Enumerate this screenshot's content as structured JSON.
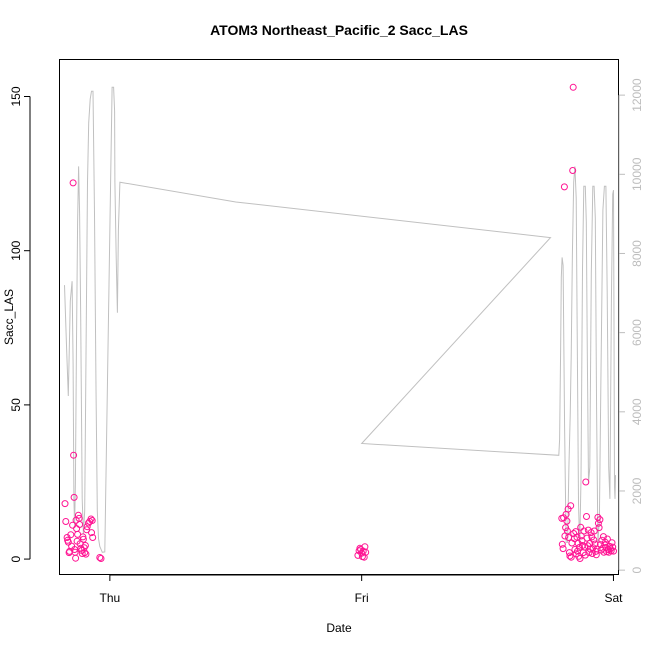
{
  "chart_data": {
    "type": "scatter",
    "title": "ATOM3 Northeast_Pacific_2 Sacc_LAS",
    "xlabel": "Date",
    "ylabel": "Sacc_LAS",
    "x_ticks": [
      "Thu",
      "Fri",
      "Sat"
    ],
    "x_range_days": [
      -0.2,
      2.02
    ],
    "ylim": [
      -5,
      162
    ],
    "y_ticks": [
      0,
      50,
      100,
      150
    ],
    "y2lim": [
      -110,
      12900
    ],
    "y2_ticks": [
      0,
      2000,
      4000,
      6000,
      8000,
      10000,
      12000
    ],
    "grid": false,
    "colors": {
      "points": "#ff1493",
      "altitude_line": "#c0c0c0",
      "right_axis": "#bdbdbd"
    },
    "series": [
      {
        "values": [
          [
            -0.178,
            18
          ],
          [
            -0.175,
            12.2
          ],
          [
            -0.17,
            7
          ],
          [
            -0.168,
            6.1
          ],
          [
            -0.165,
            5.5
          ],
          [
            -0.162,
            2.1
          ],
          [
            -0.16,
            2.5
          ],
          [
            -0.155,
            7.9
          ],
          [
            -0.152,
            4.2
          ],
          [
            -0.148,
            11
          ],
          [
            -0.146,
            122
          ],
          [
            -0.144,
            33.7
          ],
          [
            -0.142,
            20
          ],
          [
            -0.14,
            3.1
          ],
          [
            -0.138,
            2.2
          ],
          [
            -0.136,
            0.3
          ],
          [
            -0.134,
            12.6
          ],
          [
            -0.132,
            9.9
          ],
          [
            -0.13,
            5.8
          ],
          [
            -0.128,
            8
          ],
          [
            -0.125,
            14.2
          ],
          [
            -0.122,
            13.2
          ],
          [
            -0.12,
            11.2
          ],
          [
            -0.118,
            5
          ],
          [
            -0.115,
            3.5
          ],
          [
            -0.112,
            2.8
          ],
          [
            -0.11,
            1.8
          ],
          [
            -0.107,
            7.2
          ],
          [
            -0.105,
            6.4
          ],
          [
            -0.102,
            3.7
          ],
          [
            -0.1,
            2.1
          ],
          [
            -0.097,
            4.4
          ],
          [
            -0.095,
            1.6
          ],
          [
            -0.092,
            9.5
          ],
          [
            -0.09,
            10.5
          ],
          [
            -0.085,
            11.7
          ],
          [
            -0.08,
            12.2
          ],
          [
            -0.075,
            13
          ],
          [
            -0.073,
            8.6
          ],
          [
            -0.07,
            12.5
          ],
          [
            -0.068,
            7
          ],
          [
            -0.04,
            0.5
          ],
          [
            -0.035,
            0.2
          ],
          [
            0.985,
            1.2
          ],
          [
            0.99,
            2.7
          ],
          [
            0.993,
            3.5
          ],
          [
            0.996,
            3.1
          ],
          [
            1.0,
            1.9
          ],
          [
            1.003,
            0.8
          ],
          [
            1.006,
            2.6
          ],
          [
            1.01,
            0.6
          ],
          [
            1.013,
            4
          ],
          [
            1.016,
            2.2
          ],
          [
            1.795,
            13.2
          ],
          [
            1.797,
            4.8
          ],
          [
            1.8,
            3.4
          ],
          [
            1.802,
            13.4
          ],
          [
            1.805,
            120.7
          ],
          [
            1.807,
            7.5
          ],
          [
            1.81,
            10.2
          ],
          [
            1.812,
            14.5
          ],
          [
            1.815,
            12.3
          ],
          [
            1.817,
            9.1
          ],
          [
            1.82,
            16.2
          ],
          [
            1.822,
            7
          ],
          [
            1.825,
            2.1
          ],
          [
            1.827,
            1
          ],
          [
            1.83,
            17.3
          ],
          [
            1.832,
            0.6
          ],
          [
            1.835,
            5.2
          ],
          [
            1.838,
            126
          ],
          [
            1.84,
            153
          ],
          [
            1.842,
            8.3
          ],
          [
            1.845,
            6.6
          ],
          [
            1.847,
            3.1
          ],
          [
            1.85,
            8.9
          ],
          [
            1.852,
            1.7
          ],
          [
            1.855,
            7.1
          ],
          [
            1.857,
            2.6
          ],
          [
            1.86,
            5.1
          ],
          [
            1.862,
            0.9
          ],
          [
            1.865,
            3.8
          ],
          [
            1.867,
            0.2
          ],
          [
            1.87,
            10.3
          ],
          [
            1.872,
            7.5
          ],
          [
            1.875,
            6
          ],
          [
            1.877,
            4.4
          ],
          [
            1.88,
            2.1
          ],
          [
            1.883,
            9.1
          ],
          [
            1.885,
            3.9
          ],
          [
            1.888,
            1.3
          ],
          [
            1.89,
            25
          ],
          [
            1.893,
            13.8
          ],
          [
            1.895,
            6.8
          ],
          [
            1.898,
            4.3
          ],
          [
            1.9,
            9.4
          ],
          [
            1.903,
            2.1
          ],
          [
            1.906,
            5.1
          ],
          [
            1.908,
            3.2
          ],
          [
            1.911,
            8.6
          ],
          [
            1.914,
            7.2
          ],
          [
            1.916,
            1.8
          ],
          [
            1.919,
            3.7
          ],
          [
            1.922,
            6.2
          ],
          [
            1.924,
            9.1
          ],
          [
            1.927,
            4.9
          ],
          [
            1.93,
            2.5
          ],
          [
            1.932,
            1.4
          ],
          [
            1.935,
            3.3
          ],
          [
            1.938,
            13.5
          ],
          [
            1.94,
            11.6
          ],
          [
            1.943,
            10.2
          ],
          [
            1.946,
            12.8
          ],
          [
            1.948,
            4.7
          ],
          [
            1.951,
            2.9
          ],
          [
            1.954,
            6.1
          ],
          [
            1.957,
            3.5
          ],
          [
            1.96,
            7.3
          ],
          [
            1.962,
            2.2
          ],
          [
            1.965,
            4.6
          ],
          [
            1.968,
            5.4
          ],
          [
            1.97,
            3.8
          ],
          [
            1.973,
            2.4
          ],
          [
            1.976,
            6.5
          ],
          [
            1.979,
            3.1
          ],
          [
            1.982,
            2.2
          ],
          [
            1.985,
            4.1
          ],
          [
            1.988,
            3.3
          ],
          [
            1.991,
            2.7
          ],
          [
            1.994,
            5.3
          ],
          [
            1.997,
            3.9
          ],
          [
            2.0,
            2.6
          ]
        ]
      },
      {
        "axis": "right",
        "values": [
          [
            -0.18,
            7200
          ],
          [
            -0.172,
            5600
          ],
          [
            -0.165,
            4400
          ],
          [
            -0.157,
            6800
          ],
          [
            -0.15,
            7300
          ],
          [
            -0.146,
            5200
          ],
          [
            -0.143,
            1800
          ],
          [
            -0.14,
            1100
          ],
          [
            -0.137,
            2200
          ],
          [
            -0.133,
            5500
          ],
          [
            -0.128,
            8800
          ],
          [
            -0.124,
            10200
          ],
          [
            -0.12,
            9000
          ],
          [
            -0.116,
            6400
          ],
          [
            -0.11,
            1800
          ],
          [
            -0.105,
            900
          ],
          [
            -0.1,
            1500
          ],
          [
            -0.094,
            6000
          ],
          [
            -0.089,
            9800
          ],
          [
            -0.084,
            11300
          ],
          [
            -0.078,
            11900
          ],
          [
            -0.073,
            12100
          ],
          [
            -0.067,
            12100
          ],
          [
            -0.061,
            9000
          ],
          [
            -0.055,
            4600
          ],
          [
            -0.05,
            1500
          ],
          [
            -0.045,
            800
          ],
          [
            -0.04,
            600
          ],
          [
            -0.03,
            450
          ],
          [
            -0.02,
            460
          ],
          [
            0.009,
            12200
          ],
          [
            0.015,
            12200
          ],
          [
            0.019,
            11600
          ],
          [
            0.02,
            9800
          ],
          [
            0.025,
            7900
          ],
          [
            0.03,
            6500
          ],
          [
            0.034,
            8600
          ],
          [
            0.04,
            9800
          ],
          [
            0.5,
            9300
          ],
          [
            1.75,
            8400
          ],
          [
            1.0,
            3200
          ],
          [
            1.783,
            2900
          ],
          [
            1.786,
            3300
          ],
          [
            1.79,
            5500
          ],
          [
            1.793,
            7400
          ],
          [
            1.796,
            7900
          ],
          [
            1.8,
            7700
          ],
          [
            1.806,
            3600
          ],
          [
            1.812,
            700
          ],
          [
            1.818,
            700
          ],
          [
            1.823,
            2600
          ],
          [
            1.828,
            3900
          ],
          [
            1.832,
            5400
          ],
          [
            1.837,
            8000
          ],
          [
            1.842,
            9800
          ],
          [
            1.847,
            10200
          ],
          [
            1.852,
            9400
          ],
          [
            1.856,
            6000
          ],
          [
            1.861,
            1700
          ],
          [
            1.866,
            600
          ],
          [
            1.871,
            2300
          ],
          [
            1.877,
            7600
          ],
          [
            1.882,
            9700
          ],
          [
            1.888,
            9700
          ],
          [
            1.892,
            8800
          ],
          [
            1.896,
            5500
          ],
          [
            1.901,
            2200
          ],
          [
            1.906,
            2600
          ],
          [
            1.912,
            7500
          ],
          [
            1.918,
            9700
          ],
          [
            1.923,
            9700
          ],
          [
            1.928,
            8900
          ],
          [
            1.933,
            4000
          ],
          [
            1.938,
            700
          ],
          [
            1.944,
            1300
          ],
          [
            1.95,
            4800
          ],
          [
            1.958,
            9100
          ],
          [
            1.964,
            9700
          ],
          [
            1.97,
            9700
          ],
          [
            1.975,
            7000
          ],
          [
            1.981,
            2600
          ],
          [
            1.986,
            1800
          ],
          [
            1.992,
            6800
          ],
          [
            1.997,
            9500
          ],
          [
            2.0,
            9600
          ],
          [
            2.002,
            6200
          ],
          [
            2.004,
            2100
          ],
          [
            2.006,
            1800
          ],
          [
            2.008,
            2400
          ]
        ]
      }
    ]
  }
}
